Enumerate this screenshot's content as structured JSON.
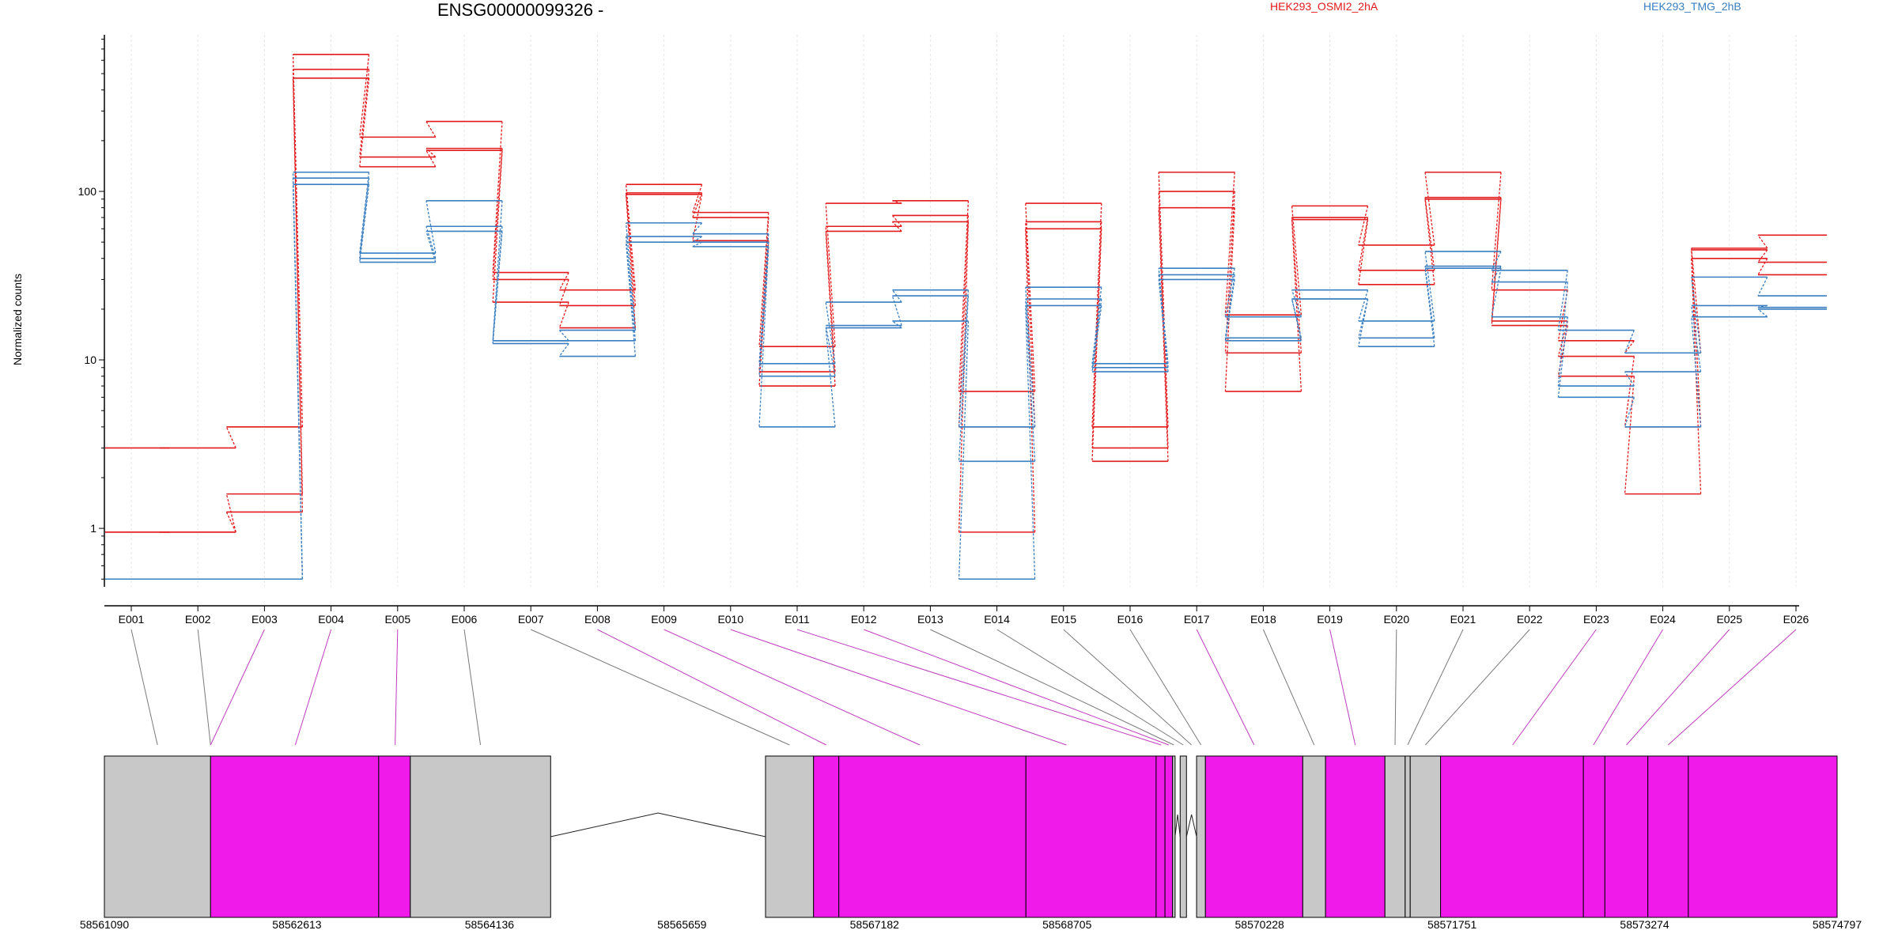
{
  "chart_data": {
    "type": "line",
    "title": "ENSG00000099326 -",
    "ylabel": "Normalized counts",
    "y_scale": "log",
    "ylim": [
      0.45,
      850
    ],
    "y_ticks": [
      1,
      10,
      100
    ],
    "grid": "vertical, light gray, dotted",
    "categories": [
      "E001",
      "E002",
      "E003",
      "E004",
      "E005",
      "E006",
      "E007",
      "E008",
      "E009",
      "E010",
      "E011",
      "E012",
      "E013",
      "E014",
      "E015",
      "E016",
      "E017",
      "E018",
      "E019",
      "E020",
      "E021",
      "E022",
      "E023",
      "E024",
      "E025",
      "E026"
    ],
    "colors": {
      "HEK293_OSMI2_2hA": "#e31a1c",
      "HEK293_TMG_2hB": "#3a7fc1"
    },
    "series": [
      {
        "group": "HEK293_OSMI2_2hA",
        "values": [
          3,
          3,
          4,
          650,
          210,
          260,
          33,
          26,
          110,
          75,
          12,
          85,
          88,
          6.5,
          85,
          4,
          130,
          18.5,
          82,
          48,
          130,
          26,
          13,
          11,
          46,
          55
        ]
      },
      {
        "group": "HEK293_OSMI2_2hA",
        "values": [
          0.95,
          0.95,
          1.6,
          530,
          160,
          180,
          30,
          21,
          98,
          70,
          8.5,
          62,
          72,
          4,
          66,
          3,
          100,
          11,
          70,
          34,
          92,
          17,
          10.5,
          4,
          45,
          38
        ]
      },
      {
        "group": "HEK293_OSMI2_2hA",
        "values": [
          0.95,
          0.95,
          1.25,
          470,
          140,
          175,
          22,
          15.5,
          96,
          51,
          7,
          58,
          66,
          0.95,
          60,
          2.5,
          80,
          6.5,
          68,
          28,
          90,
          16,
          8,
          1.6,
          40,
          32
        ]
      },
      {
        "group": "HEK293_TMG_2hB",
        "values": [
          0.5,
          0.5,
          0.5,
          130,
          43,
          88,
          13,
          15,
          65,
          56,
          9.5,
          22,
          26,
          4,
          27,
          9.5,
          35,
          18,
          26,
          17,
          44,
          34,
          15,
          11,
          31,
          24
        ]
      },
      {
        "group": "HEK293_TMG_2hB",
        "values": [
          0.5,
          0.5,
          0.5,
          120,
          40,
          62,
          13,
          13,
          54,
          50,
          8,
          16,
          24,
          2.5,
          23,
          9,
          32,
          13.5,
          23,
          13.5,
          36,
          29,
          7,
          8.5,
          21,
          20.5
        ]
      },
      {
        "group": "HEK293_TMG_2hB",
        "values": [
          0.5,
          0.5,
          0.5,
          110,
          38,
          58,
          12.5,
          10.5,
          50,
          47,
          4,
          15.5,
          17,
          0.5,
          21,
          8.5,
          30,
          13,
          23,
          12,
          35,
          18,
          6,
          4,
          18,
          20
        ]
      }
    ],
    "genomic_axis": {
      "start": 58561090,
      "end": 58574797,
      "tick_labels": [
        "58561090",
        "58562613",
        "58564136",
        "58565659",
        "58567182",
        "58568705",
        "58570228",
        "58571751",
        "58573274",
        "58574797"
      ]
    },
    "gene_model": {
      "highlight_color": "#f01aeb",
      "neutral_color": "#c8c8c8",
      "blocks": [
        {
          "from": 58561090,
          "to": 58561930,
          "highlight": false
        },
        {
          "from": 58561930,
          "to": 58563260,
          "highlight": true
        },
        {
          "from": 58563260,
          "to": 58563510,
          "highlight": true
        },
        {
          "from": 58563510,
          "to": 58564620,
          "highlight": false
        },
        {
          "from": 58566320,
          "to": 58566700,
          "highlight": false
        },
        {
          "from": 58566700,
          "to": 58566900,
          "highlight": true
        },
        {
          "from": 58566900,
          "to": 58568380,
          "highlight": true
        },
        {
          "from": 58568380,
          "to": 58569410,
          "highlight": true
        },
        {
          "from": 58569410,
          "to": 58569480,
          "highlight": true
        },
        {
          "from": 58569480,
          "to": 58569540,
          "highlight": true
        },
        {
          "from": 58569540,
          "to": 58569560,
          "highlight": false
        },
        {
          "from": 58569600,
          "to": 58569650,
          "highlight": false
        },
        {
          "from": 58569730,
          "to": 58569800,
          "highlight": false
        },
        {
          "from": 58569800,
          "to": 58570570,
          "highlight": true
        },
        {
          "from": 58570570,
          "to": 58570750,
          "highlight": false
        },
        {
          "from": 58570750,
          "to": 58571220,
          "highlight": true
        },
        {
          "from": 58571220,
          "to": 58571380,
          "highlight": false
        },
        {
          "from": 58571380,
          "to": 58571420,
          "highlight": false
        },
        {
          "from": 58571420,
          "to": 58571660,
          "highlight": false
        },
        {
          "from": 58571660,
          "to": 58572790,
          "highlight": true
        },
        {
          "from": 58572790,
          "to": 58572960,
          "highlight": true
        },
        {
          "from": 58572960,
          "to": 58573300,
          "highlight": true
        },
        {
          "from": 58573300,
          "to": 58573620,
          "highlight": true
        },
        {
          "from": 58573620,
          "to": 58574797,
          "highlight": true
        }
      ],
      "introns": [
        {
          "from": 58564620,
          "to": 58566320,
          "peak": 58565470
        },
        {
          "from": 58569560,
          "to": 58569600,
          "peak": 58569580
        },
        {
          "from": 58569650,
          "to": 58569730,
          "peak": 58569690
        }
      ]
    },
    "exon_links": [
      {
        "label": "E001",
        "pos": 58561510,
        "highlight": false
      },
      {
        "label": "E002",
        "pos": 58561930,
        "highlight": false
      },
      {
        "label": "E003",
        "pos": 58561930,
        "highlight": true
      },
      {
        "label": "E004",
        "pos": 58562600,
        "highlight": true
      },
      {
        "label": "E005",
        "pos": 58563390,
        "highlight": true
      },
      {
        "label": "E006",
        "pos": 58564065,
        "highlight": false
      },
      {
        "label": "E007",
        "pos": 58566510,
        "highlight": false
      },
      {
        "label": "E008",
        "pos": 58566800,
        "highlight": true
      },
      {
        "label": "E009",
        "pos": 58567540,
        "highlight": true
      },
      {
        "label": "E010",
        "pos": 58568700,
        "highlight": true
      },
      {
        "label": "E011",
        "pos": 58569450,
        "highlight": true
      },
      {
        "label": "E012",
        "pos": 58569510,
        "highlight": true
      },
      {
        "label": "E013",
        "pos": 58569550,
        "highlight": false
      },
      {
        "label": "E014",
        "pos": 58569625,
        "highlight": false
      },
      {
        "label": "E015",
        "pos": 58569690,
        "highlight": false
      },
      {
        "label": "E016",
        "pos": 58569765,
        "highlight": false
      },
      {
        "label": "E017",
        "pos": 58570185,
        "highlight": true
      },
      {
        "label": "E018",
        "pos": 58570660,
        "highlight": false
      },
      {
        "label": "E019",
        "pos": 58570985,
        "highlight": true
      },
      {
        "label": "E020",
        "pos": 58571300,
        "highlight": false
      },
      {
        "label": "E021",
        "pos": 58571400,
        "highlight": false
      },
      {
        "label": "E022",
        "pos": 58571540,
        "highlight": false
      },
      {
        "label": "E023",
        "pos": 58572230,
        "highlight": true
      },
      {
        "label": "E024",
        "pos": 58572870,
        "highlight": true
      },
      {
        "label": "E025",
        "pos": 58573130,
        "highlight": true
      },
      {
        "label": "E026",
        "pos": 58573460,
        "highlight": true
      }
    ]
  },
  "legend": [
    "HEK293_OSMI2_2hA",
    "HEK293_TMG_2hB"
  ]
}
